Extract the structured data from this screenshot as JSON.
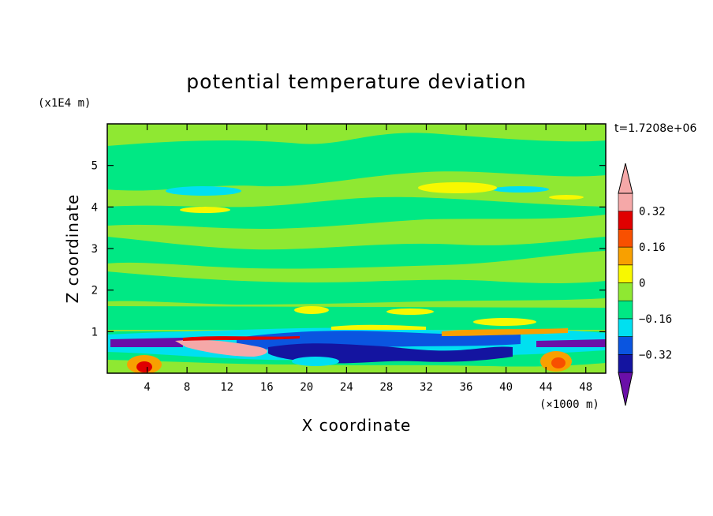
{
  "chart_data": {
    "type": "heatmap",
    "title": "potential temperature deviation",
    "xlabel": "X coordinate",
    "ylabel": "Z coordinate",
    "x_unit": "(×1000 m)",
    "y_unit": "(x1E4 m)",
    "time_label": "t=1.7208e+06",
    "xlim": [
      0,
      50
    ],
    "ylim": [
      0,
      6
    ],
    "x_ticks": [
      4,
      8,
      12,
      16,
      20,
      24,
      28,
      32,
      36,
      40,
      44,
      48
    ],
    "y_ticks": [
      1,
      2,
      3,
      4,
      5
    ],
    "colorbar": {
      "levels": [
        -0.4,
        -0.32,
        -0.24,
        -0.16,
        -0.08,
        0,
        0.08,
        0.16,
        0.24,
        0.32,
        0.4
      ],
      "tick_labels": [
        "0.32",
        "0.16",
        "0",
        "−0.16",
        "−0.32"
      ],
      "tick_values": [
        0.32,
        0.16,
        0,
        -0.16,
        -0.32
      ],
      "colors": [
        "#6a0fa8",
        "#1414a0",
        "#0a55e0",
        "#00e0f0",
        "#00e884",
        "#8fe832",
        "#f8f800",
        "#f8a000",
        "#f85000",
        "#e00000",
        "#f5a8a8"
      ]
    }
  }
}
